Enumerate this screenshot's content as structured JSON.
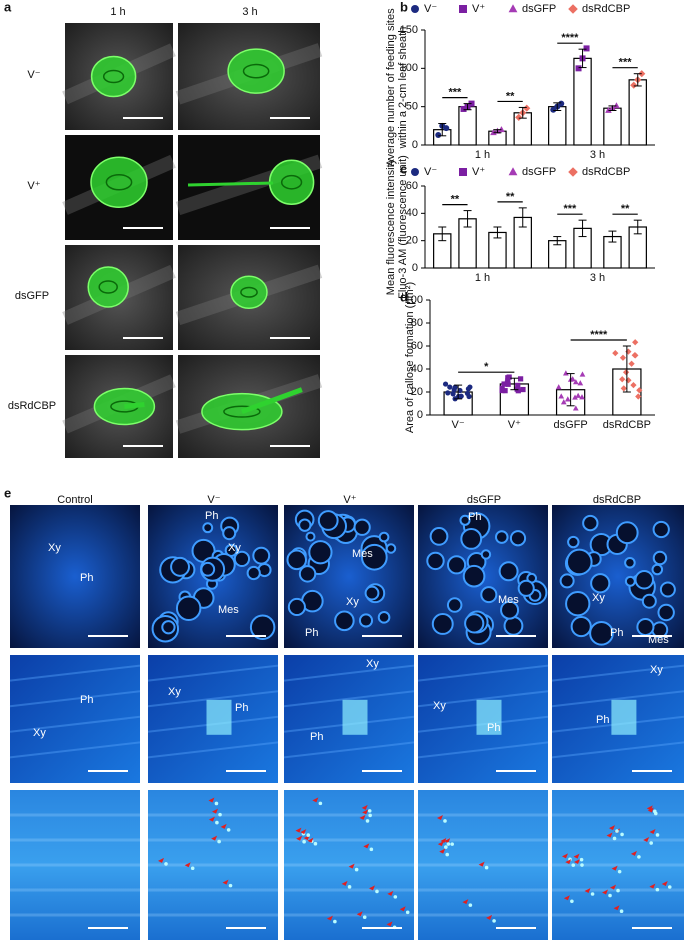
{
  "panel_labels": {
    "a": "a",
    "e": "e"
  },
  "panel_a": {
    "columns": [
      "1 h",
      "3 h"
    ],
    "rows": [
      "V⁻",
      "V⁺",
      "dsGFP",
      "dsRdCBP"
    ]
  },
  "chart_data": [
    {
      "type": "bar",
      "panel_label": "b",
      "ylabel": [
        "Average number of feeding sites",
        "within a 2-cm leaf sheath"
      ],
      "categories": [
        "1 h",
        "3 h"
      ],
      "series": [
        {
          "name": "V⁻",
          "color": "#1c2a80",
          "values": [
            20,
            50
          ],
          "errors": [
            8,
            5
          ],
          "points": [
            [
              13,
              25,
              22
            ],
            [
              46,
              50,
              54
            ]
          ]
        },
        {
          "name": "V⁺",
          "color": "#7b1fa2",
          "values": [
            50,
            113
          ],
          "errors": [
            4,
            12
          ],
          "points": [
            [
              47,
              50,
              54
            ],
            [
              100,
              113,
              126
            ]
          ]
        },
        {
          "name": "dsGFP",
          "color": "#a53bb5",
          "values": [
            18,
            48
          ],
          "errors": [
            2,
            3
          ],
          "points": [
            [
              16,
              18,
              20
            ],
            [
              45,
              48,
              51
            ]
          ]
        },
        {
          "name": "dsRdCBP",
          "color": "#ec7063",
          "values": [
            42,
            85
          ],
          "errors": [
            7,
            8
          ],
          "points": [
            [
              36,
              42,
              48
            ],
            [
              78,
              85,
              93
            ]
          ]
        }
      ],
      "ylim": [
        0,
        150
      ],
      "yticks": [
        0,
        50,
        100,
        150
      ],
      "significance": [
        "***",
        "**",
        "****",
        "***"
      ]
    },
    {
      "type": "bar",
      "panel_label": "c",
      "ylabel": [
        "Mean fluorescence intensity",
        "Fluo-3 AM (fluorescence unit)"
      ],
      "categories": [
        "1 h",
        "3 h"
      ],
      "series": [
        {
          "name": "V⁻",
          "color": "#1c2a80",
          "values": [
            25,
            20
          ],
          "errors": [
            5,
            3
          ]
        },
        {
          "name": "V⁺",
          "color": "#7b1fa2",
          "values": [
            36,
            29
          ],
          "errors": [
            6,
            6
          ]
        },
        {
          "name": "dsGFP",
          "color": "#a53bb5",
          "values": [
            26,
            23
          ],
          "errors": [
            4,
            4
          ]
        },
        {
          "name": "dsRdCBP",
          "color": "#ec7063",
          "values": [
            37,
            30
          ],
          "errors": [
            7,
            5
          ]
        }
      ],
      "ylim": [
        0,
        60
      ],
      "yticks": [
        0,
        20,
        40,
        60
      ],
      "significance": [
        "**",
        "**",
        "***",
        "**"
      ]
    },
    {
      "type": "bar",
      "panel_label": "d",
      "ylabel": [
        "Area of callose formation (μm²)"
      ],
      "categories": [
        "V⁻",
        "V⁺",
        "dsGFP",
        "dsRdCBP"
      ],
      "values": [
        20,
        27,
        22,
        40
      ],
      "errors": [
        6,
        5,
        14,
        20
      ],
      "colors": [
        "#1c2a80",
        "#7b1fa2",
        "#a53bb5",
        "#ec7063"
      ],
      "ylim": [
        0,
        100
      ],
      "yticks": [
        0,
        20,
        40,
        60,
        80,
        100
      ],
      "significance": [
        "*",
        "****"
      ]
    }
  ],
  "panel_e": {
    "columns": [
      "Control",
      "V⁻",
      "V⁺",
      "dsGFP",
      "dsRdCBP"
    ],
    "labels": [
      [
        [
          "Xy",
          "Ph"
        ],
        [
          "Ph",
          "Xy",
          "Mes"
        ],
        [
          "Mes",
          "Xy",
          "Ph"
        ],
        [
          "Ph",
          "Mes"
        ],
        [
          "Xy",
          "Ph",
          "Mes"
        ]
      ],
      [
        [
          "Ph",
          "Xy"
        ],
        [
          "Xy",
          "Ph"
        ],
        [
          "Xy",
          "Ph"
        ],
        [
          "Xy",
          "Ph"
        ],
        [
          "Xy",
          "Ph"
        ]
      ]
    ]
  }
}
